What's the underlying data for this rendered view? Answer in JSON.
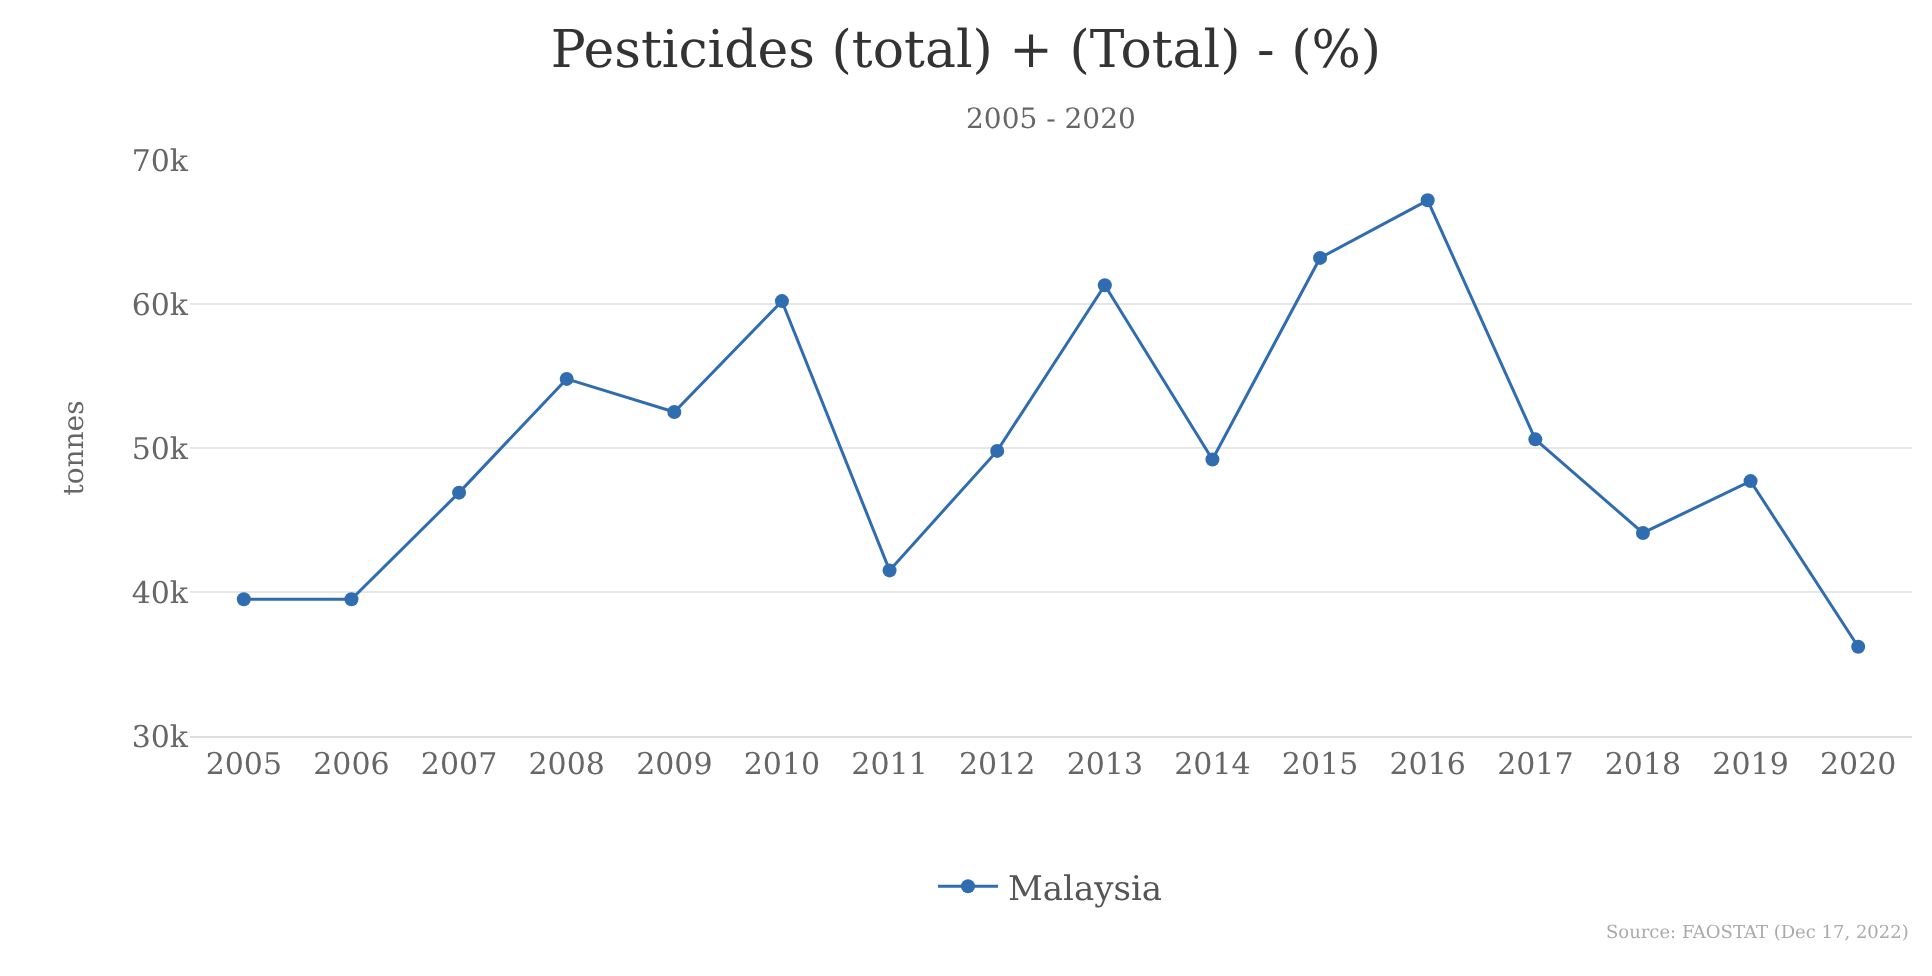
{
  "chart_data": {
    "type": "line",
    "title": "Pesticides (total) + (Total) - (%)",
    "subtitle": "2005 - 2020",
    "ylabel": "tonnes",
    "categories": [
      "2005",
      "2006",
      "2007",
      "2008",
      "2009",
      "2010",
      "2011",
      "2012",
      "2013",
      "2014",
      "2015",
      "2016",
      "2017",
      "2018",
      "2019",
      "2020"
    ],
    "series": [
      {
        "name": "Malaysia",
        "color": "#2f6db0",
        "values": [
          39500,
          39500,
          46900,
          54800,
          52500,
          60200,
          41500,
          49800,
          61300,
          49200,
          63200,
          67200,
          50600,
          44100,
          47700,
          36200
        ]
      }
    ],
    "ylim": [
      30000,
      70000
    ],
    "yticks": [
      {
        "value": 30000,
        "label": "30k"
      },
      {
        "value": 40000,
        "label": "40k"
      },
      {
        "value": 50000,
        "label": "50k"
      },
      {
        "value": 60000,
        "label": "60k"
      },
      {
        "value": 70000,
        "label": "70k"
      }
    ],
    "grid": "y",
    "legend": "bottom",
    "marker": "circle",
    "line_style": "solid",
    "annotations": [
      "Source: FAOSTAT (Dec 17, 2022)"
    ]
  }
}
